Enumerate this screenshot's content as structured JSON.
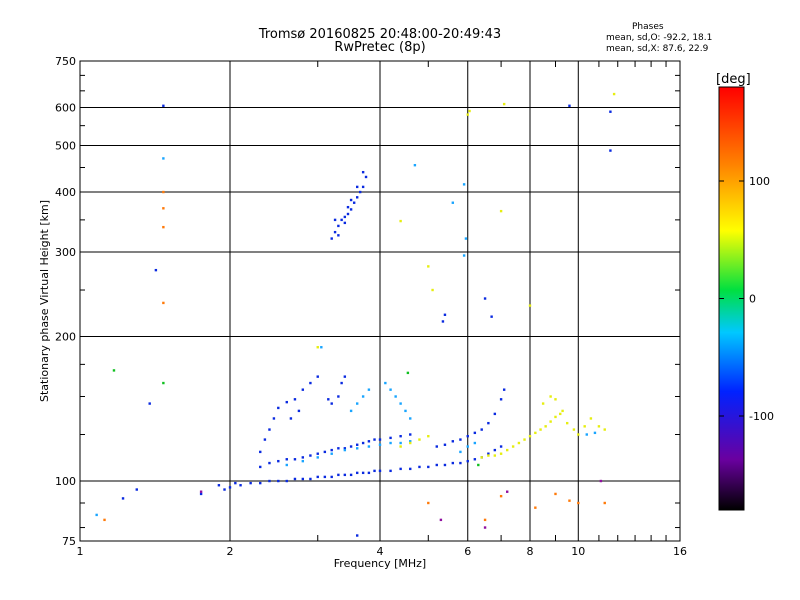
{
  "chart_data": {
    "type": "scatter",
    "title": "Tromsø 20160825 20:48:00-20:49:43",
    "subtitle": "RwPretec (8p)",
    "xlabel": "Frequency [MHz]",
    "ylabel": "Stationary phase Virtual Height [km]",
    "x_scale": "log",
    "y_scale": "log",
    "xlim": [
      1,
      16
    ],
    "ylim": [
      75,
      750
    ],
    "x_ticks": [
      "1",
      "2",
      "4",
      "6",
      "8",
      "10",
      "16"
    ],
    "y_ticks": [
      "75",
      "100",
      "200",
      "300",
      "400",
      "500",
      "600",
      "750"
    ],
    "grid": true,
    "phase_stats": {
      "heading": "Phases",
      "o_label": "mean, sd,O: -92.2, 18.1",
      "x_label": "mean, sd,X:  87.6, 22.9"
    },
    "colorbar": {
      "label": "[deg]",
      "min": -180,
      "max": 180,
      "ticks": [
        "100",
        "0",
        "-100"
      ]
    },
    "series": [
      {
        "color": "#0a2ae0",
        "points": [
          [
            1.9,
            98
          ],
          [
            1.95,
            96
          ],
          [
            2.0,
            97
          ],
          [
            2.05,
            99
          ],
          [
            2.1,
            98
          ],
          [
            2.2,
            99
          ],
          [
            2.3,
            99
          ],
          [
            2.4,
            100
          ],
          [
            2.5,
            100
          ],
          [
            2.6,
            100
          ],
          [
            2.7,
            101
          ],
          [
            2.8,
            101
          ],
          [
            2.9,
            101
          ],
          [
            3.0,
            102
          ],
          [
            3.1,
            102
          ],
          [
            3.2,
            102
          ],
          [
            3.3,
            103
          ],
          [
            3.4,
            103
          ],
          [
            3.5,
            103
          ],
          [
            3.6,
            104
          ],
          [
            3.7,
            104
          ],
          [
            3.8,
            104
          ],
          [
            3.9,
            105
          ],
          [
            4.0,
            105
          ],
          [
            4.2,
            105
          ],
          [
            4.4,
            106
          ],
          [
            4.6,
            106
          ],
          [
            4.8,
            107
          ],
          [
            5.0,
            107
          ],
          [
            5.2,
            108
          ],
          [
            5.4,
            108
          ],
          [
            5.6,
            109
          ],
          [
            5.8,
            109
          ],
          [
            6.0,
            110
          ],
          [
            6.2,
            111
          ],
          [
            6.4,
            112
          ],
          [
            6.6,
            114
          ],
          [
            6.8,
            116
          ],
          [
            7.0,
            118
          ],
          [
            2.3,
            107
          ],
          [
            2.4,
            109
          ],
          [
            2.5,
            110
          ],
          [
            2.6,
            111
          ],
          [
            2.7,
            111
          ],
          [
            2.8,
            112
          ],
          [
            2.9,
            113
          ],
          [
            3.0,
            114
          ],
          [
            3.1,
            115
          ],
          [
            3.2,
            116
          ],
          [
            3.3,
            117
          ],
          [
            3.4,
            117
          ],
          [
            3.5,
            118
          ],
          [
            3.6,
            119
          ],
          [
            3.7,
            120
          ],
          [
            3.8,
            121
          ],
          [
            3.9,
            122
          ],
          [
            4.0,
            122
          ],
          [
            4.2,
            123
          ],
          [
            4.4,
            124
          ],
          [
            4.6,
            125
          ],
          [
            5.2,
            118
          ],
          [
            5.4,
            119
          ],
          [
            5.6,
            121
          ],
          [
            5.8,
            122
          ],
          [
            6.0,
            124
          ],
          [
            6.2,
            126
          ],
          [
            6.4,
            128
          ],
          [
            6.6,
            132
          ],
          [
            6.8,
            138
          ],
          [
            7.0,
            148
          ],
          [
            7.1,
            155
          ],
          [
            2.3,
            115
          ],
          [
            2.35,
            122
          ],
          [
            2.4,
            128
          ],
          [
            2.45,
            135
          ],
          [
            2.5,
            142
          ],
          [
            2.6,
            146
          ],
          [
            2.7,
            148
          ],
          [
            2.8,
            155
          ],
          [
            2.9,
            160
          ],
          [
            3.0,
            165
          ],
          [
            2.75,
            140
          ],
          [
            2.65,
            135
          ],
          [
            3.15,
            148
          ],
          [
            3.2,
            145
          ],
          [
            3.3,
            150
          ],
          [
            3.35,
            160
          ],
          [
            3.4,
            165
          ],
          [
            3.2,
            320
          ],
          [
            3.25,
            330
          ],
          [
            3.3,
            340
          ],
          [
            3.35,
            350
          ],
          [
            3.4,
            355
          ],
          [
            3.45,
            360
          ],
          [
            3.5,
            368
          ],
          [
            3.55,
            380
          ],
          [
            3.6,
            390
          ],
          [
            3.65,
            400
          ],
          [
            3.7,
            410
          ],
          [
            3.75,
            430
          ],
          [
            3.3,
            325
          ],
          [
            3.4,
            345
          ],
          [
            3.5,
            385
          ],
          [
            3.6,
            410
          ],
          [
            3.7,
            440
          ],
          [
            3.25,
            350
          ],
          [
            3.45,
            372
          ],
          [
            1.47,
            605
          ],
          [
            1.42,
            275
          ],
          [
            1.38,
            145
          ],
          [
            1.3,
            96
          ],
          [
            1.22,
            92
          ],
          [
            1.75,
            94
          ],
          [
            5.35,
            215
          ],
          [
            5.4,
            222
          ],
          [
            6.5,
            240
          ],
          [
            6.7,
            220
          ],
          [
            9.6,
            605
          ],
          [
            11.6,
            588
          ],
          [
            11.6,
            488
          ],
          [
            3.6,
            77
          ]
        ]
      },
      {
        "color": "#19a5ff",
        "points": [
          [
            2.6,
            108
          ],
          [
            2.8,
            110
          ],
          [
            3.0,
            112
          ],
          [
            3.2,
            114
          ],
          [
            3.4,
            116
          ],
          [
            3.6,
            117
          ],
          [
            3.8,
            118
          ],
          [
            4.0,
            119
          ],
          [
            4.2,
            120
          ],
          [
            4.4,
            120
          ],
          [
            4.6,
            121
          ],
          [
            3.5,
            140
          ],
          [
            3.6,
            145
          ],
          [
            3.7,
            150
          ],
          [
            3.8,
            155
          ],
          [
            4.1,
            160
          ],
          [
            4.2,
            155
          ],
          [
            4.3,
            150
          ],
          [
            4.4,
            145
          ],
          [
            4.5,
            140
          ],
          [
            4.6,
            135
          ],
          [
            5.8,
            115
          ],
          [
            6.0,
            118
          ],
          [
            6.2,
            120
          ],
          [
            1.47,
            470
          ],
          [
            4.7,
            455
          ],
          [
            5.9,
            415
          ],
          [
            5.6,
            380
          ],
          [
            5.95,
            320
          ],
          [
            5.9,
            295
          ],
          [
            1.08,
            85
          ],
          [
            3.05,
            190
          ],
          [
            10.4,
            125
          ],
          [
            10.8,
            126
          ]
        ]
      },
      {
        "color": "#e6ee10",
        "points": [
          [
            4.4,
            118
          ],
          [
            4.6,
            120
          ],
          [
            4.8,
            122
          ],
          [
            5.0,
            124
          ],
          [
            6.4,
            112
          ],
          [
            6.6,
            113
          ],
          [
            6.8,
            113
          ],
          [
            7.0,
            114
          ],
          [
            7.2,
            116
          ],
          [
            7.4,
            118
          ],
          [
            7.6,
            120
          ],
          [
            7.8,
            122
          ],
          [
            8.0,
            124
          ],
          [
            8.2,
            126
          ],
          [
            8.4,
            128
          ],
          [
            8.6,
            130
          ],
          [
            8.8,
            133
          ],
          [
            9.0,
            136
          ],
          [
            9.2,
            138
          ],
          [
            8.5,
            145
          ],
          [
            8.8,
            150
          ],
          [
            9.0,
            148
          ],
          [
            9.3,
            140
          ],
          [
            9.5,
            132
          ],
          [
            9.8,
            128
          ],
          [
            10.0,
            125
          ],
          [
            10.3,
            130
          ],
          [
            10.6,
            135
          ],
          [
            11.0,
            130
          ],
          [
            11.3,
            128
          ],
          [
            6.0,
            580
          ],
          [
            6.05,
            590
          ],
          [
            7.0,
            365
          ],
          [
            8.0,
            232
          ],
          [
            7.1,
            610
          ],
          [
            11.8,
            640
          ],
          [
            4.4,
            348
          ],
          [
            5.0,
            280
          ],
          [
            3.0,
            190
          ],
          [
            5.1,
            250
          ]
        ]
      },
      {
        "color": "#ff7a0a",
        "points": [
          [
            1.47,
            400
          ],
          [
            1.47,
            370
          ],
          [
            1.47,
            338
          ],
          [
            1.47,
            235
          ],
          [
            5.0,
            90
          ],
          [
            6.5,
            83
          ],
          [
            7.0,
            93
          ],
          [
            8.2,
            88
          ],
          [
            9.0,
            94
          ],
          [
            10.0,
            90
          ],
          [
            11.3,
            90
          ],
          [
            1.12,
            83
          ],
          [
            9.6,
            91
          ]
        ]
      },
      {
        "color": "#10c020",
        "points": [
          [
            1.17,
            170
          ],
          [
            1.47,
            160
          ],
          [
            4.55,
            168
          ],
          [
            6.3,
            108
          ]
        ]
      },
      {
        "color": "#9010a0",
        "points": [
          [
            5.3,
            83
          ],
          [
            6.5,
            80
          ],
          [
            7.2,
            95
          ],
          [
            1.75,
            95
          ],
          [
            11.1,
            100
          ]
        ]
      }
    ]
  }
}
